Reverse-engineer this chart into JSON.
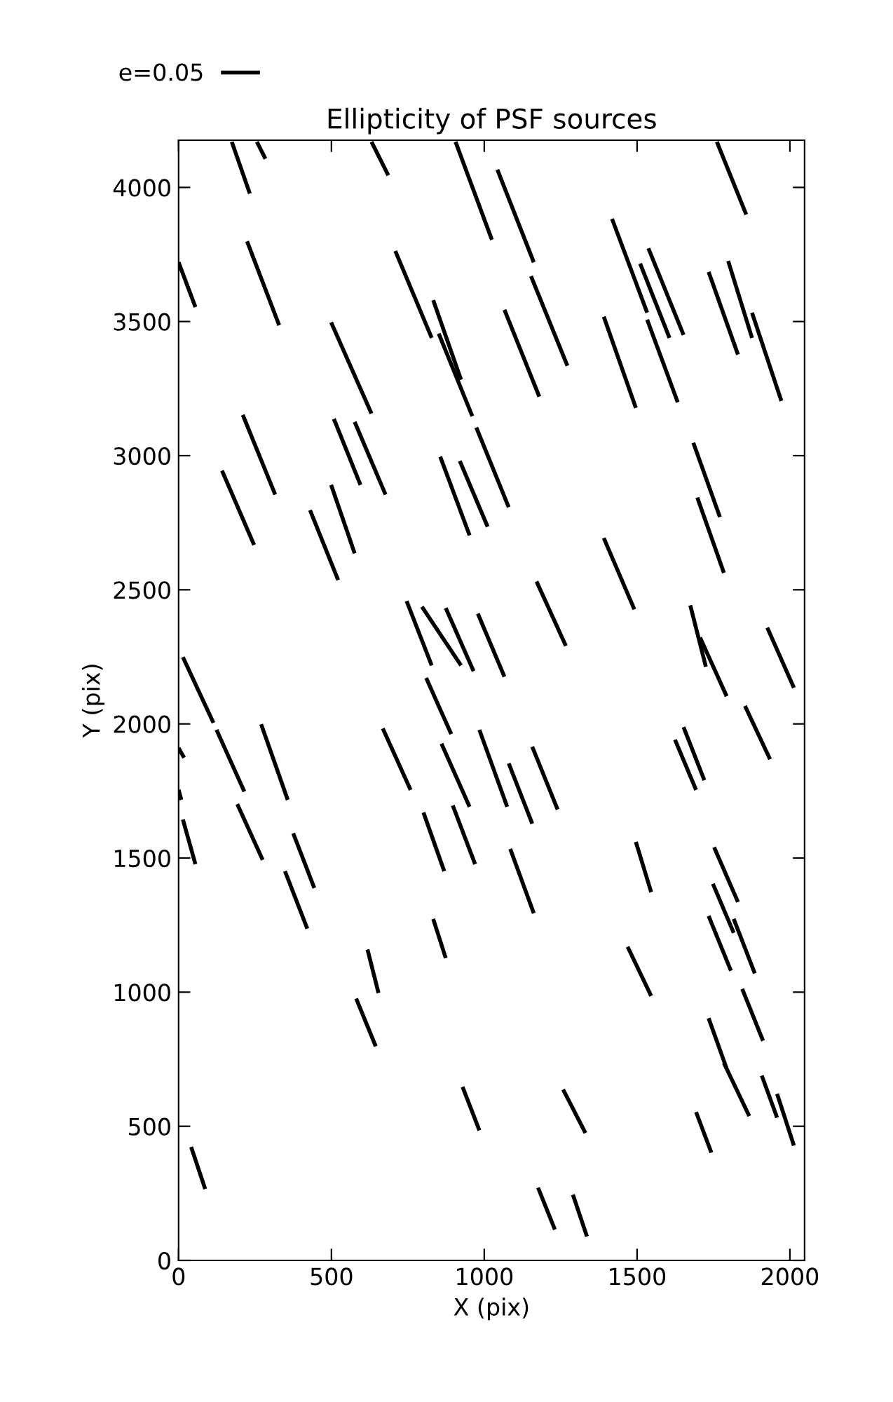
{
  "chart_data": {
    "type": "line",
    "title": "Ellipticity of PSF sources",
    "xlabel": "X (pix)",
    "ylabel": "Y (pix)",
    "xlim": [
      0,
      2048
    ],
    "ylim": [
      0,
      4176
    ],
    "xticks": [
      0,
      500,
      1000,
      1500,
      2000
    ],
    "yticks": [
      0,
      500,
      1000,
      1500,
      2000,
      2500,
      3000,
      3500,
      4000
    ],
    "grid": false,
    "legend": "top left",
    "marker": "none",
    "line_style": "solid",
    "series": [
      {
        "name": "e=0.05",
        "color": "#000000",
        "x": [
          0,
          55
        ],
        "values": [
          3721,
          3554
        ]
      },
      {
        "color": "#000000",
        "x": [
          174,
          233
        ],
        "values": [
          4170,
          3977
        ]
      },
      {
        "color": "#000000",
        "x": [
          256,
          284
        ],
        "values": [
          4170,
          4107
        ]
      },
      {
        "color": "#000000",
        "x": [
          631,
          686
        ],
        "values": [
          4170,
          4045
        ]
      },
      {
        "color": "#000000",
        "x": [
          906,
          1025
        ],
        "values": [
          4170,
          3805
        ]
      },
      {
        "color": "#000000",
        "x": [
          1043,
          1162
        ],
        "values": [
          4066,
          3721
        ]
      },
      {
        "color": "#000000",
        "x": [
          1761,
          1857
        ],
        "values": [
          4170,
          3899
        ]
      },
      {
        "color": "#000000",
        "x": [
          224,
          329
        ],
        "values": [
          3799,
          3486
        ]
      },
      {
        "color": "#000000",
        "x": [
          709,
          828
        ],
        "values": [
          3763,
          3439
        ]
      },
      {
        "color": "#000000",
        "x": [
          833,
          924
        ],
        "values": [
          3580,
          3283
        ]
      },
      {
        "color": "#000000",
        "x": [
          851,
          961
        ],
        "values": [
          3455,
          3147
        ]
      },
      {
        "color": "#000000",
        "x": [
          499,
          631
        ],
        "values": [
          3497,
          3157
        ]
      },
      {
        "color": "#000000",
        "x": [
          1066,
          1180
        ],
        "values": [
          3544,
          3220
        ]
      },
      {
        "color": "#000000",
        "x": [
          1153,
          1272
        ],
        "values": [
          3669,
          3335
        ]
      },
      {
        "color": "#000000",
        "x": [
          1391,
          1496
        ],
        "values": [
          3518,
          3178
        ]
      },
      {
        "color": "#000000",
        "x": [
          1418,
          1533
        ],
        "values": [
          3883,
          3533
        ]
      },
      {
        "color": "#000000",
        "x": [
          1510,
          1606
        ],
        "values": [
          3716,
          3439
        ]
      },
      {
        "color": "#000000",
        "x": [
          1537,
          1652
        ],
        "values": [
          3773,
          3450
        ]
      },
      {
        "color": "#000000",
        "x": [
          1533,
          1633
        ],
        "values": [
          3507,
          3199
        ]
      },
      {
        "color": "#000000",
        "x": [
          1734,
          1830
        ],
        "values": [
          3685,
          3377
        ]
      },
      {
        "color": "#000000",
        "x": [
          1798,
          1876
        ],
        "values": [
          3726,
          3439
        ]
      },
      {
        "color": "#000000",
        "x": [
          1876,
          1972
        ],
        "values": [
          3533,
          3204
        ]
      },
      {
        "color": "#000000",
        "x": [
          210,
          316
        ],
        "values": [
          3152,
          2855
        ]
      },
      {
        "color": "#000000",
        "x": [
          142,
          247
        ],
        "values": [
          2944,
          2667
        ]
      },
      {
        "color": "#000000",
        "x": [
          508,
          595
        ],
        "values": [
          3137,
          2891
        ]
      },
      {
        "color": "#000000",
        "x": [
          576,
          677
        ],
        "values": [
          3126,
          2855
        ]
      },
      {
        "color": "#000000",
        "x": [
          499,
          576
        ],
        "values": [
          2891,
          2636
        ]
      },
      {
        "color": "#000000",
        "x": [
          430,
          522
        ],
        "values": [
          2797,
          2536
        ]
      },
      {
        "color": "#000000",
        "x": [
          856,
          952
        ],
        "values": [
          2996,
          2703
        ]
      },
      {
        "color": "#000000",
        "x": [
          920,
          1011
        ],
        "values": [
          2980,
          2735
        ]
      },
      {
        "color": "#000000",
        "x": [
          974,
          1080
        ],
        "values": [
          3105,
          2808
        ]
      },
      {
        "color": "#000000",
        "x": [
          1391,
          1491
        ],
        "values": [
          2693,
          2427
        ]
      },
      {
        "color": "#000000",
        "x": [
          1171,
          1267
        ],
        "values": [
          2531,
          2291
        ]
      },
      {
        "color": "#000000",
        "x": [
          1684,
          1771
        ],
        "values": [
          3048,
          2771
        ]
      },
      {
        "color": "#000000",
        "x": [
          1697,
          1784
        ],
        "values": [
          2844,
          2563
        ]
      },
      {
        "color": "#000000",
        "x": [
          746,
          828
        ],
        "values": [
          2458,
          2218
        ]
      },
      {
        "color": "#000000",
        "x": [
          796,
          924
        ],
        "values": [
          2437,
          2218
        ]
      },
      {
        "color": "#000000",
        "x": [
          874,
          965
        ],
        "values": [
          2432,
          2197
        ]
      },
      {
        "color": "#000000",
        "x": [
          979,
          1066
        ],
        "values": [
          2411,
          2176
        ]
      },
      {
        "color": "#000000",
        "x": [
          1674,
          1725
        ],
        "values": [
          2442,
          2213
        ]
      },
      {
        "color": "#000000",
        "x": [
          1706,
          1793
        ],
        "values": [
          2322,
          2103
        ]
      },
      {
        "color": "#000000",
        "x": [
          1926,
          2013
        ],
        "values": [
          2359,
          2135
        ]
      },
      {
        "color": "#000000",
        "x": [
          1853,
          1935
        ],
        "values": [
          2067,
          1868
        ]
      },
      {
        "color": "#000000",
        "x": [
          14,
          114
        ],
        "values": [
          2249,
          2004
        ]
      },
      {
        "color": "#000000",
        "x": [
          0,
          18
        ],
        "values": [
          1910,
          1874
        ]
      },
      {
        "color": "#000000",
        "x": [
          124,
          215
        ],
        "values": [
          1978,
          1748
        ]
      },
      {
        "color": "#000000",
        "x": [
          270,
          357
        ],
        "values": [
          1999,
          1717
        ]
      },
      {
        "color": "#000000",
        "x": [
          668,
          759
        ],
        "values": [
          1983,
          1754
        ]
      },
      {
        "color": "#000000",
        "x": [
          810,
          892
        ],
        "values": [
          2171,
          1962
        ]
      },
      {
        "color": "#000000",
        "x": [
          860,
          952
        ],
        "values": [
          1926,
          1691
        ]
      },
      {
        "color": "#000000",
        "x": [
          984,
          1075
        ],
        "values": [
          1978,
          1691
        ]
      },
      {
        "color": "#000000",
        "x": [
          1080,
          1157
        ],
        "values": [
          1853,
          1628
        ]
      },
      {
        "color": "#000000",
        "x": [
          1157,
          1240
        ],
        "values": [
          1915,
          1681
        ]
      },
      {
        "color": "#000000",
        "x": [
          1624,
          1693
        ],
        "values": [
          1941,
          1754
        ]
      },
      {
        "color": "#000000",
        "x": [
          1652,
          1720
        ],
        "values": [
          1988,
          1790
        ]
      },
      {
        "color": "#000000",
        "x": [
          0,
          9
        ],
        "values": [
          1754,
          1717
        ]
      },
      {
        "color": "#000000",
        "x": [
          14,
          55
        ],
        "values": [
          1644,
          1477
        ]
      },
      {
        "color": "#000000",
        "x": [
          192,
          275
        ],
        "values": [
          1701,
          1493
        ]
      },
      {
        "color": "#000000",
        "x": [
          375,
          444
        ],
        "values": [
          1592,
          1388
        ]
      },
      {
        "color": "#000000",
        "x": [
          348,
          421
        ],
        "values": [
          1451,
          1237
        ]
      },
      {
        "color": "#000000",
        "x": [
          801,
          869
        ],
        "values": [
          1670,
          1451
        ]
      },
      {
        "color": "#000000",
        "x": [
          897,
          970
        ],
        "values": [
          1696,
          1477
        ]
      },
      {
        "color": "#000000",
        "x": [
          1085,
          1162
        ],
        "values": [
          1534,
          1294
        ]
      },
      {
        "color": "#000000",
        "x": [
          1496,
          1546
        ],
        "values": [
          1560,
          1373
        ]
      },
      {
        "color": "#000000",
        "x": [
          1752,
          1830
        ],
        "values": [
          1540,
          1336
        ]
      },
      {
        "color": "#000000",
        "x": [
          1748,
          1816
        ],
        "values": [
          1404,
          1221
        ]
      },
      {
        "color": "#000000",
        "x": [
          1816,
          1885
        ],
        "values": [
          1273,
          1070
        ]
      },
      {
        "color": "#000000",
        "x": [
          1734,
          1807
        ],
        "values": [
          1284,
          1080
        ]
      },
      {
        "color": "#000000",
        "x": [
          833,
          874
        ],
        "values": [
          1273,
          1127
        ]
      },
      {
        "color": "#000000",
        "x": [
          618,
          654
        ],
        "values": [
          1159,
          997
        ]
      },
      {
        "color": "#000000",
        "x": [
          581,
          645
        ],
        "values": [
          976,
          798
        ]
      },
      {
        "color": "#000000",
        "x": [
          1469,
          1546
        ],
        "values": [
          1169,
          986
        ]
      },
      {
        "color": "#000000",
        "x": [
          1844,
          1912
        ],
        "values": [
          1012,
          819
        ]
      },
      {
        "color": "#000000",
        "x": [
          1734,
          1793
        ],
        "values": [
          903,
          715
        ]
      },
      {
        "color": "#000000",
        "x": [
          1784,
          1867
        ],
        "values": [
          736,
          538
        ]
      },
      {
        "color": "#000000",
        "x": [
          1908,
          1958
        ],
        "values": [
          689,
          532
        ]
      },
      {
        "color": "#000000",
        "x": [
          1958,
          2013
        ],
        "values": [
          621,
          428
        ]
      },
      {
        "color": "#000000",
        "x": [
          1693,
          1743
        ],
        "values": [
          553,
          402
        ]
      },
      {
        "color": "#000000",
        "x": [
          929,
          984
        ],
        "values": [
          647,
          485
        ]
      },
      {
        "color": "#000000",
        "x": [
          1258,
          1331
        ],
        "values": [
          637,
          475
        ]
      },
      {
        "color": "#000000",
        "x": [
          41,
          87
        ],
        "values": [
          423,
          266
        ]
      },
      {
        "color": "#000000",
        "x": [
          1176,
          1231
        ],
        "values": [
          271,
          115
        ]
      },
      {
        "color": "#000000",
        "x": [
          1290,
          1336
        ],
        "values": [
          245,
          89
        ]
      }
    ]
  }
}
